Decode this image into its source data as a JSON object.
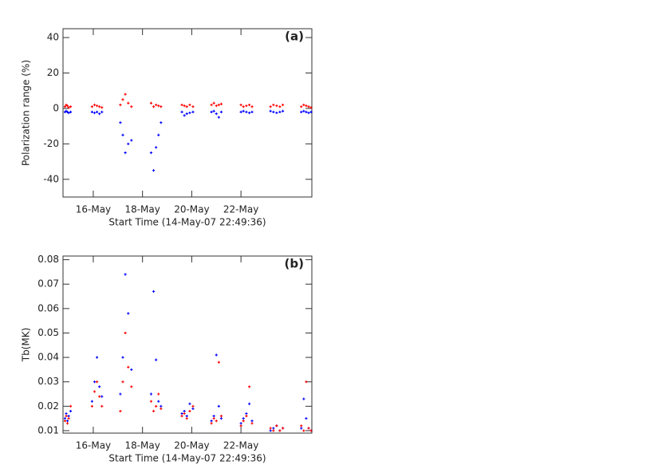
{
  "chart_data": [
    {
      "type": "scatter",
      "annotation": "(a)",
      "xlabel": "Start Time (14-May-07 22:49:36)",
      "ylabel": "Polarization range (%)",
      "xlim": [
        14.77,
        24.88
      ],
      "xticks": [
        {
          "value": 16,
          "label": "16-May"
        },
        {
          "value": 18,
          "label": "18-May"
        },
        {
          "value": 20,
          "label": "20-May"
        },
        {
          "value": 22,
          "label": "22-May"
        }
      ],
      "ylim": [
        -50,
        45
      ],
      "yticks": [
        -40,
        -20,
        0,
        20,
        40
      ],
      "x": [
        14.85,
        14.9,
        14.95,
        15.0,
        15.08,
        15.95,
        16.05,
        16.15,
        16.25,
        16.35,
        17.1,
        17.2,
        17.3,
        17.42,
        17.55,
        18.35,
        18.45,
        18.55,
        18.65,
        18.75,
        19.6,
        19.7,
        19.8,
        19.92,
        20.05,
        20.8,
        20.9,
        21.0,
        21.1,
        21.2,
        22.0,
        22.1,
        22.22,
        22.34,
        22.45,
        23.2,
        23.32,
        23.45,
        23.58,
        23.7,
        24.45,
        24.55,
        24.65,
        24.75,
        24.85
      ],
      "series": [
        {
          "color": "#ff0000",
          "values": [
            1,
            2,
            1.5,
            0.5,
            1,
            1,
            2,
            1.5,
            1,
            0.5,
            2,
            5,
            8,
            3,
            1,
            3,
            1,
            2,
            1.5,
            1,
            2,
            1.5,
            1,
            2,
            1,
            2,
            3,
            1.5,
            2,
            2.5,
            2,
            1,
            1.5,
            2,
            1,
            1,
            2,
            1.5,
            1,
            2,
            1,
            2,
            1.5,
            1,
            0.5
          ]
        },
        {
          "color": "#0000ff",
          "values": [
            -2,
            -1.5,
            -2,
            -2.5,
            -2,
            -2,
            -2.5,
            -2,
            -3,
            -2,
            -8,
            -15,
            -25,
            -20,
            -18,
            -25,
            -35,
            -22,
            -15,
            -8,
            -2,
            -4,
            -3,
            -2.5,
            -2,
            -2,
            -1.5,
            -3,
            -5,
            -2,
            -2,
            -1.5,
            -2,
            -2.5,
            -2,
            -1.5,
            -2,
            -2.5,
            -2,
            -1.5,
            -2,
            -1.5,
            -2,
            -2.5,
            -2
          ]
        }
      ]
    },
    {
      "type": "scatter",
      "annotation": "(b)",
      "xlabel": "Start Time (14-May-07 22:49:36)",
      "ylabel": "Tb(MK)",
      "xlim": [
        14.77,
        24.88
      ],
      "xticks": [
        {
          "value": 16,
          "label": "16-May"
        },
        {
          "value": 18,
          "label": "18-May"
        },
        {
          "value": 20,
          "label": "20-May"
        },
        {
          "value": 22,
          "label": "22-May"
        }
      ],
      "ylim": [
        0.009,
        0.0815
      ],
      "yticks": [
        0.01,
        0.02,
        0.03,
        0.04,
        0.05,
        0.06,
        0.07,
        0.08
      ],
      "x": [
        14.85,
        14.9,
        14.95,
        15.0,
        15.08,
        15.95,
        16.05,
        16.15,
        16.25,
        16.35,
        17.1,
        17.2,
        17.3,
        17.42,
        17.55,
        18.35,
        18.45,
        18.55,
        18.65,
        18.75,
        19.6,
        19.7,
        19.8,
        19.92,
        20.05,
        20.8,
        20.9,
        21.0,
        21.1,
        21.2,
        22.0,
        22.1,
        22.22,
        22.34,
        22.45,
        23.2,
        23.32,
        23.45,
        23.58,
        23.7,
        24.45,
        24.55,
        24.65,
        24.75,
        24.85
      ],
      "series": [
        {
          "color": "#0000ff",
          "values": [
            0.015,
            0.017,
            0.014,
            0.016,
            0.018,
            0.022,
            0.03,
            0.04,
            0.028,
            0.024,
            0.025,
            0.04,
            0.074,
            0.058,
            0.035,
            0.025,
            0.067,
            0.039,
            0.022,
            0.02,
            0.017,
            0.018,
            0.016,
            0.021,
            0.019,
            0.014,
            0.016,
            0.041,
            0.02,
            0.015,
            0.013,
            0.015,
            0.017,
            0.021,
            0.014,
            0.01,
            0.011,
            0.012,
            0.01,
            0.011,
            0.011,
            0.023,
            0.015,
            0.011,
            0.01
          ]
        },
        {
          "color": "#ff0000",
          "values": [
            0.014,
            0.016,
            0.013,
            0.015,
            0.02,
            0.02,
            0.026,
            0.03,
            0.024,
            0.02,
            0.018,
            0.03,
            0.05,
            0.036,
            0.028,
            0.022,
            0.018,
            0.02,
            0.025,
            0.019,
            0.016,
            0.017,
            0.015,
            0.018,
            0.02,
            0.013,
            0.015,
            0.014,
            0.038,
            0.016,
            0.012,
            0.014,
            0.016,
            0.028,
            0.013,
            0.011,
            0.01,
            0.012,
            0.01,
            0.011,
            0.012,
            0.01,
            0.03,
            0.011,
            0.01
          ]
        }
      ]
    }
  ]
}
